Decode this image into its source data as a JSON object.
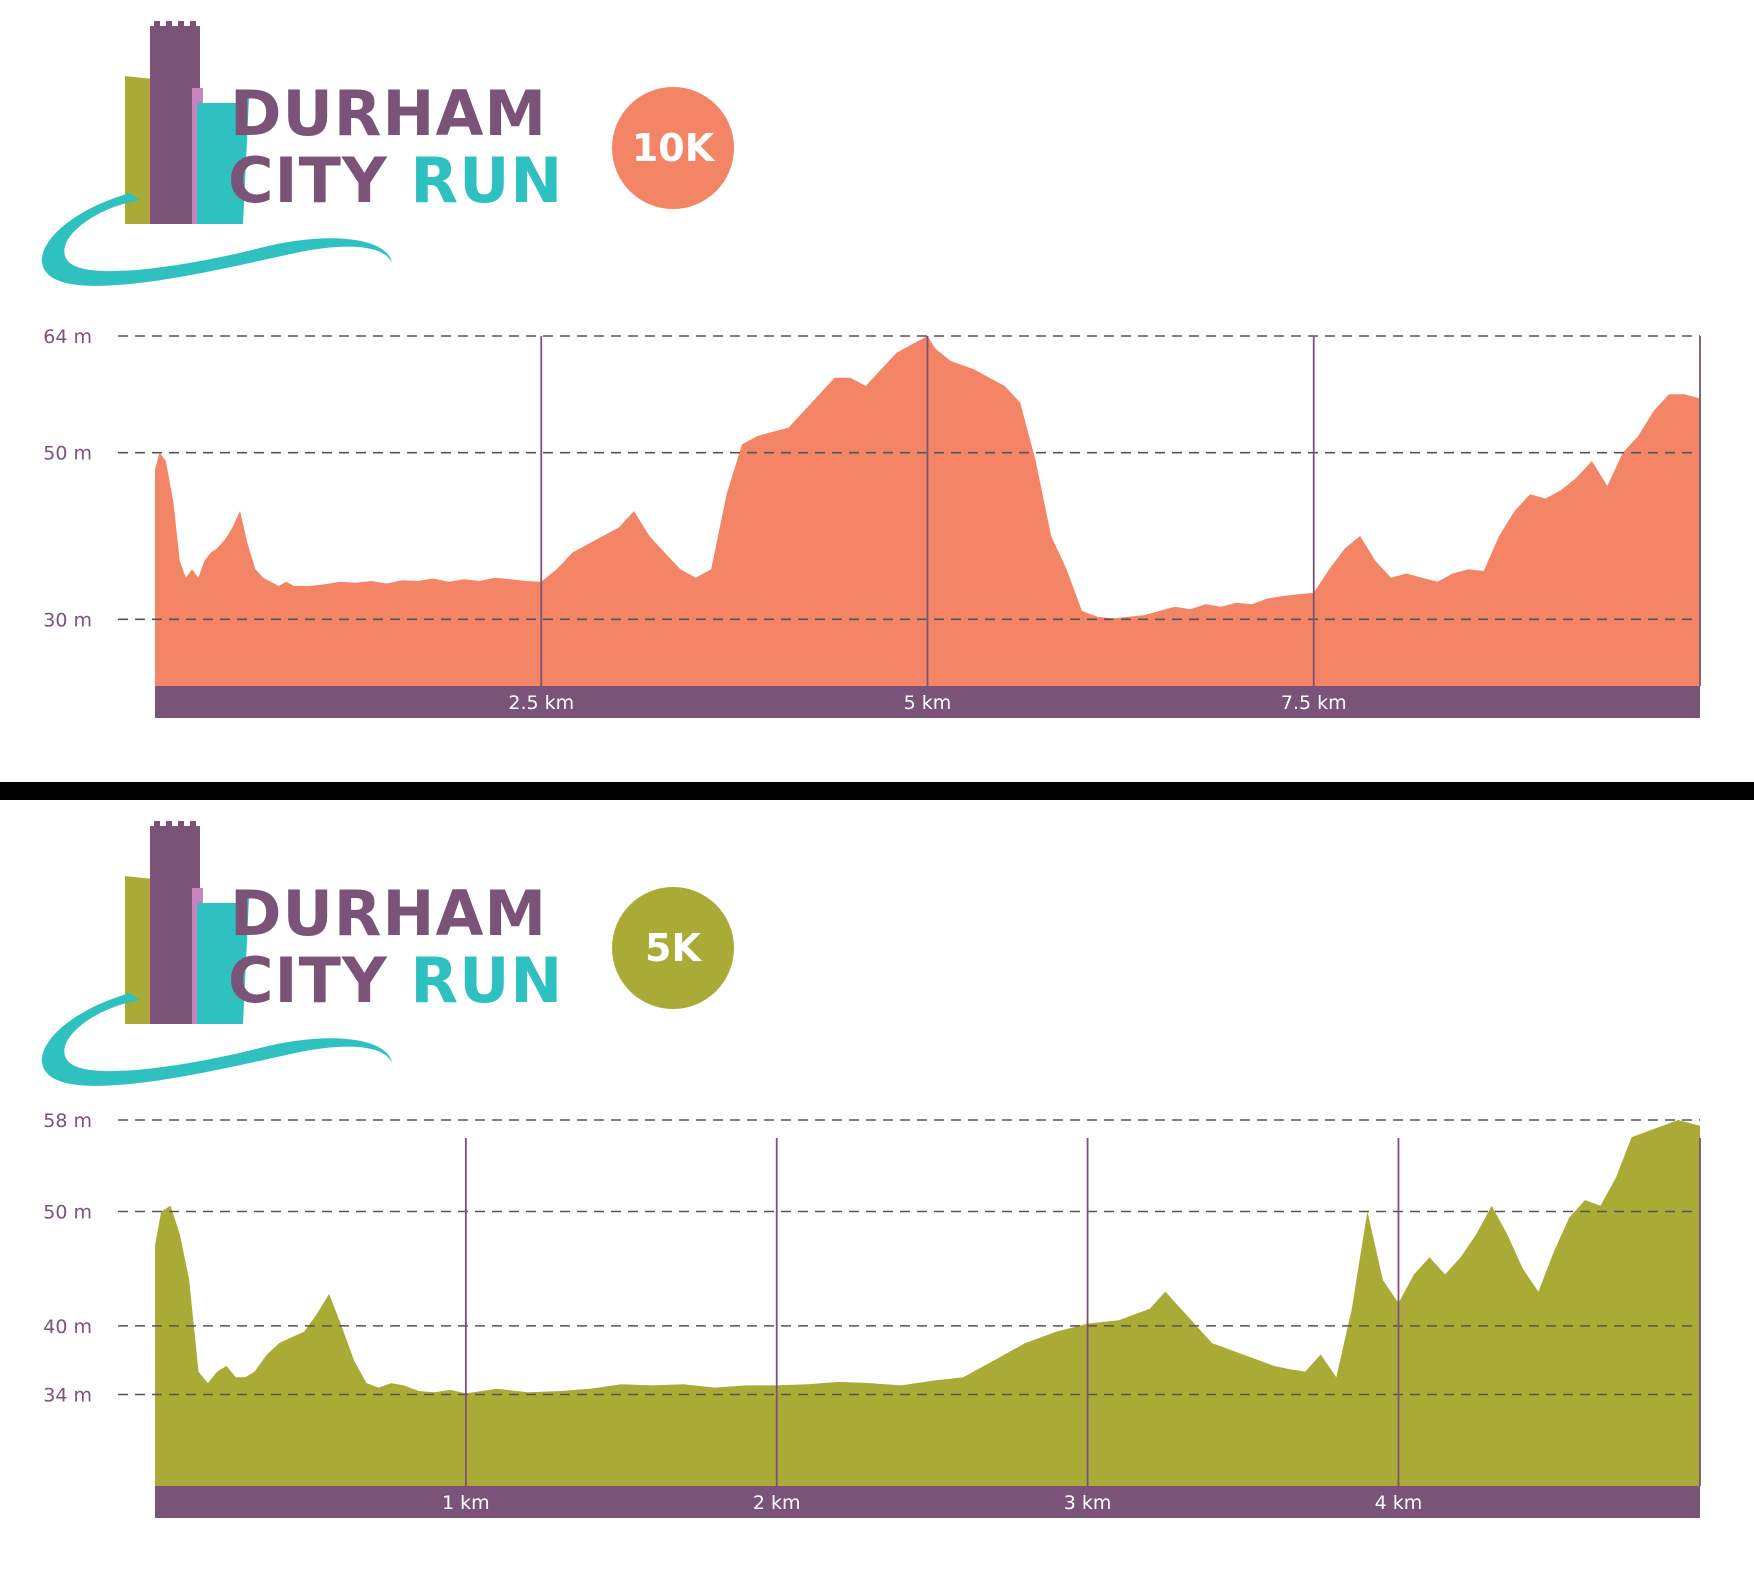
{
  "colors": {
    "purple": "#7c5378",
    "teal": "#2fc0c0",
    "olive": "#a9ab36",
    "orange": "#f38466",
    "pink": "#c785be",
    "axis_bar": "#7c5378",
    "axis_text": "#ffffff",
    "grid": "#555555"
  },
  "panels": [
    {
      "logo": {
        "line1": "DURHAM",
        "line2_a": "CITY ",
        "line2_b": "RUN",
        "badge": "10K",
        "badge_color": "#f38466"
      },
      "chart_data": {
        "type": "area",
        "title": "",
        "xlabel": "",
        "ylabel": "",
        "xlim": [
          0,
          10
        ],
        "ylim": [
          22,
          64
        ],
        "color": "#f38466",
        "y_gridlines": [
          30,
          50,
          64
        ],
        "y_tick_labels": [
          "30 m",
          "50 m",
          "64 m"
        ],
        "x_ticks": [
          2.5,
          5,
          7.5
        ],
        "x_tick_labels": [
          "2.5 km",
          "5 km",
          "7.5 km"
        ],
        "series": [
          {
            "x": [
              0,
              0.03,
              0.07,
              0.12,
              0.16,
              0.2,
              0.24,
              0.28,
              0.32,
              0.36,
              0.4,
              0.45,
              0.5,
              0.55,
              0.6,
              0.65,
              0.7,
              0.75,
              0.8,
              0.85,
              0.9,
              0.95,
              1.0,
              1.1,
              1.2,
              1.3,
              1.4,
              1.5,
              1.6,
              1.7,
              1.8,
              1.9,
              2.0,
              2.1,
              2.2,
              2.3,
              2.4,
              2.5,
              2.6,
              2.7,
              2.8,
              2.9,
              3.0,
              3.1,
              3.2,
              3.3,
              3.4,
              3.5,
              3.6,
              3.7,
              3.8,
              3.9,
              4.0,
              4.1,
              4.2,
              4.3,
              4.4,
              4.5,
              4.6,
              4.7,
              4.8,
              4.9,
              5.0,
              5.05,
              5.15,
              5.3,
              5.4,
              5.5,
              5.6,
              5.7,
              5.8,
              5.9,
              6.0,
              6.1,
              6.2,
              6.3,
              6.4,
              6.5,
              6.6,
              6.7,
              6.8,
              6.9,
              7.0,
              7.1,
              7.2,
              7.3,
              7.4,
              7.5,
              7.6,
              7.7,
              7.8,
              7.9,
              8.0,
              8.1,
              8.2,
              8.3,
              8.4,
              8.5,
              8.6,
              8.7,
              8.8,
              8.9,
              9.0,
              9.1,
              9.2,
              9.3,
              9.4,
              9.5,
              9.6,
              9.7,
              9.8,
              9.9,
              10.0
            ],
            "y": [
              48,
              50,
              49,
              44,
              37,
              35,
              36,
              35,
              37,
              38,
              38.5,
              39.5,
              41,
              43,
              39,
              36,
              35,
              34.5,
              34,
              34.5,
              34,
              34,
              34,
              34.2,
              34.5,
              34.4,
              34.6,
              34.3,
              34.7,
              34.6,
              34.9,
              34.5,
              34.8,
              34.6,
              35,
              34.8,
              34.6,
              34.5,
              36,
              38,
              39,
              40,
              41,
              43,
              40,
              38,
              36,
              35,
              36,
              45,
              51,
              52,
              52.5,
              53,
              55,
              57,
              59,
              59,
              58,
              60,
              62,
              63,
              64,
              62.5,
              61,
              60,
              59,
              58,
              56,
              49,
              40,
              36,
              31,
              30.3,
              30.1,
              30.3,
              30.5,
              31,
              31.5,
              31.2,
              31.8,
              31.5,
              32,
              31.8,
              32.5,
              32.8,
              33,
              33.2,
              36,
              38.5,
              40,
              37,
              35,
              35.5,
              35,
              34.5,
              35.5,
              36,
              35.8,
              40,
              43,
              45,
              44.5,
              45.5,
              47,
              49,
              46,
              50,
              52,
              55,
              57,
              57,
              56.5
            ]
          }
        ]
      }
    },
    {
      "logo": {
        "line1": "DURHAM",
        "line2_a": "CITY ",
        "line2_b": "RUN",
        "badge": "5K",
        "badge_color": "#a9ab36"
      },
      "chart_data": {
        "type": "area",
        "title": "",
        "xlabel": "",
        "ylabel": "",
        "xlim": [
          0,
          4.97
        ],
        "ylim": [
          26,
          58
        ],
        "color": "#a9ab36",
        "y_gridlines": [
          34,
          40,
          50,
          58
        ],
        "y_tick_labels": [
          "34 m",
          "40 m",
          "50 m",
          "58 m"
        ],
        "x_ticks": [
          1,
          2,
          3,
          4
        ],
        "x_tick_labels": [
          "1 km",
          "2 km",
          "3 km",
          "4 km"
        ],
        "series": [
          {
            "x": [
              0,
              0.02,
              0.05,
              0.08,
              0.11,
              0.14,
              0.17,
              0.2,
              0.23,
              0.26,
              0.29,
              0.32,
              0.36,
              0.4,
              0.44,
              0.48,
              0.52,
              0.56,
              0.6,
              0.64,
              0.68,
              0.72,
              0.76,
              0.8,
              0.85,
              0.9,
              0.95,
              1.0,
              1.1,
              1.2,
              1.3,
              1.4,
              1.5,
              1.6,
              1.7,
              1.8,
              1.9,
              2.0,
              2.1,
              2.2,
              2.3,
              2.4,
              2.5,
              2.6,
              2.7,
              2.8,
              2.9,
              3.0,
              3.1,
              3.2,
              3.25,
              3.3,
              3.4,
              3.5,
              3.6,
              3.65,
              3.7,
              3.75,
              3.8,
              3.85,
              3.9,
              3.95,
              4.0,
              4.05,
              4.1,
              4.15,
              4.2,
              4.25,
              4.3,
              4.35,
              4.4,
              4.45,
              4.5,
              4.55,
              4.6,
              4.65,
              4.7,
              4.75,
              4.8,
              4.85,
              4.9,
              4.97
            ],
            "y": [
              47,
              50,
              50.5,
              48,
              44,
              36,
              35,
              36,
              36.5,
              35.5,
              35.5,
              36,
              37.5,
              38.5,
              39,
              39.5,
              41,
              42.8,
              40,
              37,
              35,
              34.6,
              35,
              34.8,
              34.3,
              34.2,
              34.4,
              34.1,
              34.5,
              34.2,
              34.3,
              34.5,
              34.9,
              34.8,
              34.9,
              34.6,
              34.8,
              34.8,
              34.9,
              35.1,
              35,
              34.8,
              35.2,
              35.5,
              37,
              38.5,
              39.5,
              40.2,
              40.5,
              41.5,
              43,
              41.5,
              38.5,
              37.5,
              36.5,
              36.2,
              36,
              37.5,
              35.5,
              41.5,
              50,
              44,
              42,
              44.5,
              46,
              44.5,
              46,
              48,
              50.5,
              48,
              45,
              43,
              46.5,
              49.5,
              51,
              50.5,
              53,
              56.5,
              57,
              57.5,
              58,
              57.5
            ]
          }
        ]
      }
    }
  ]
}
